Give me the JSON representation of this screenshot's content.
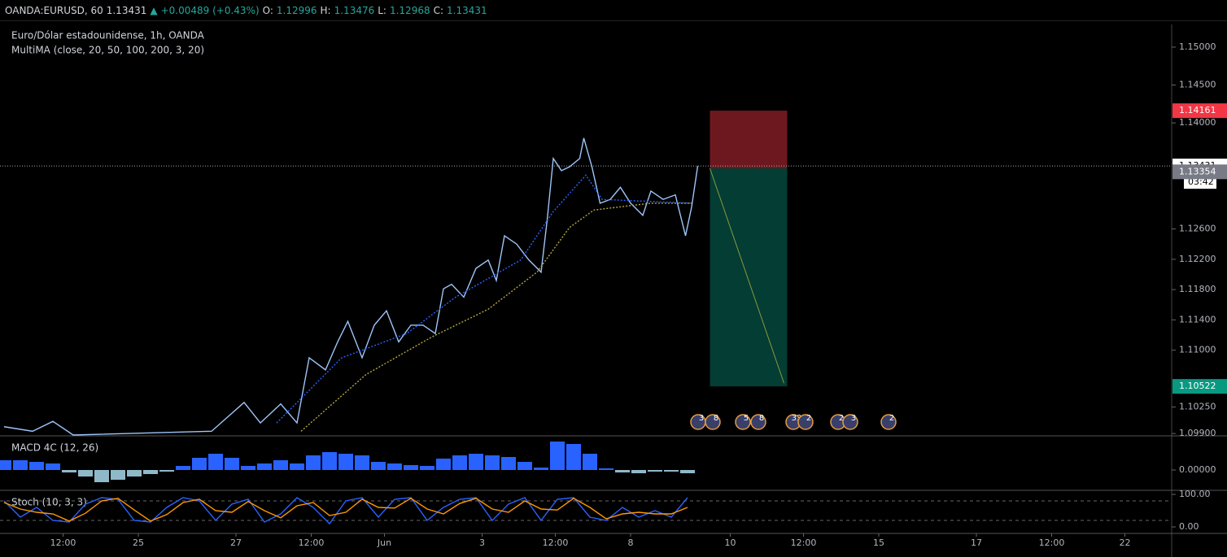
{
  "header": {
    "symbol": "OANDA:EURUSD, 60",
    "last": "1.13431",
    "arrow": "▲",
    "change": "+0.00489 (+0.43%)",
    "o_label": "O:",
    "o": "1.12996",
    "h_label": "H:",
    "h": "1.13476",
    "l_label": "L:",
    "l": "1.12968",
    "c_label": "C:",
    "c": "1.13431"
  },
  "events": [
    "3",
    "8",
    "5",
    "8",
    "33",
    "2",
    "2",
    "3",
    "2"
  ],
  "chart_data": [
    {
      "type": "line",
      "title": "Euro/Dólar estadounidense, 1h, OANDA",
      "subtitle": "MultiMA (close, 20, 50, 100, 200, 3, 20)",
      "xlim": [
        0,
        576
      ],
      "ylim": [
        1.0988,
        1.153
      ],
      "xticks": [
        {
          "value": 31,
          "label": "12:00"
        },
        {
          "value": 68,
          "label": "25"
        },
        {
          "value": 116,
          "label": "27"
        },
        {
          "value": 153,
          "label": "12:00"
        },
        {
          "value": 189,
          "label": "Jun"
        },
        {
          "value": 237,
          "label": "3"
        },
        {
          "value": 273,
          "label": "12:00"
        },
        {
          "value": 310,
          "label": "8"
        },
        {
          "value": 359,
          "label": "10"
        },
        {
          "value": 395,
          "label": "12:00"
        },
        {
          "value": 432,
          "label": "15"
        },
        {
          "value": 480,
          "label": "17"
        },
        {
          "value": 517,
          "label": "12:00"
        },
        {
          "value": 553,
          "label": "22"
        }
      ],
      "yticks": [
        {
          "value": 1.15,
          "label": "1.15000"
        },
        {
          "value": 1.145,
          "label": "1.14500"
        },
        {
          "value": 1.14,
          "label": "1.14000"
        },
        {
          "value": 1.126,
          "label": "1.12600"
        },
        {
          "value": 1.122,
          "label": "1.12200"
        },
        {
          "value": 1.118,
          "label": "1.11800"
        },
        {
          "value": 1.114,
          "label": "1.11400"
        },
        {
          "value": 1.11,
          "label": "1.11000"
        },
        {
          "value": 1.1025,
          "label": "1.10250"
        },
        {
          "value": 1.099,
          "label": "1.09900"
        }
      ],
      "series": [
        {
          "color": "#9ec5f8",
          "x": [
            2,
            16,
            26,
            36,
            104,
            120,
            128,
            138,
            146,
            152,
            160,
            166,
            171,
            178,
            184,
            190,
            196,
            202,
            208,
            214,
            218,
            222,
            228,
            234,
            240,
            244,
            248,
            254,
            260,
            266,
            269,
            272,
            276,
            280,
            285,
            287,
            291,
            295,
            300,
            305,
            310,
            316,
            320,
            326,
            332,
            337,
            340,
            343
          ],
          "values": [
            1.0999,
            1.0993,
            1.1006,
            1.0988,
            1.0993,
            1.1031,
            1.1004,
            1.1029,
            1.1004,
            1.109,
            1.1074,
            1.1111,
            1.1138,
            1.109,
            1.1133,
            1.1152,
            1.1111,
            1.1133,
            1.1133,
            1.1122,
            1.1181,
            1.1187,
            1.117,
            1.1208,
            1.1219,
            1.1192,
            1.1251,
            1.124,
            1.1219,
            1.1203,
            1.1272,
            1.1353,
            1.1337,
            1.1342,
            1.1353,
            1.138,
            1.1342,
            1.1294,
            1.1299,
            1.1315,
            1.1294,
            1.1278,
            1.131,
            1.1299,
            1.1305,
            1.1251,
            1.1289,
            1.13431
          ]
        },
        {
          "color": "#2962ff",
          "x": [
            136,
            168,
            200,
            224,
            256,
            272,
            288,
            296,
            340
          ],
          "values": [
            1.1004,
            1.109,
            1.1122,
            1.117,
            1.1219,
            1.1283,
            1.1331,
            1.1299,
            1.1294
          ]
        },
        {
          "color": "#b5a642",
          "x": [
            148,
            180,
            212,
            240,
            264,
            280,
            292,
            320,
            340
          ],
          "values": [
            1.0993,
            1.1068,
            1.1117,
            1.1154,
            1.1203,
            1.1262,
            1.1285,
            1.1294,
            1.1294
          ]
        }
      ],
      "position": {
        "x": [
          349,
          387
        ],
        "stop": 1.14161,
        "entry": 1.134,
        "target": 1.10522
      },
      "last_price": 1.13431,
      "countdown": "03:42",
      "price_tags": [
        1.14161,
        1.13431,
        1.13354,
        1.10522
      ],
      "tag_colors": [
        "#f23645",
        "#ffffff",
        "#787b86",
        "#089981"
      ]
    },
    {
      "type": "histogram",
      "title": "MACD 4C (12, 26)",
      "xlim": [
        0,
        576
      ],
      "ylim": [
        -0.0025,
        0.0041
      ],
      "yticks": [
        {
          "value": 0,
          "label": "0.00000"
        }
      ],
      "colors": [
        "#2962ff",
        "#8fb9c9"
      ],
      "x": [
        2,
        10,
        18,
        26,
        34,
        42,
        50,
        58,
        66,
        74,
        82,
        90,
        98,
        106,
        114,
        122,
        130,
        138,
        146,
        154,
        162,
        170,
        178,
        186,
        194,
        202,
        210,
        218,
        226,
        234,
        242,
        250,
        258,
        266,
        274,
        282,
        290,
        298,
        306,
        314,
        322,
        330,
        338
      ],
      "values": [
        0.0012,
        0.0012,
        0.001,
        0.0008,
        -0.0003,
        -0.0008,
        -0.0015,
        -0.0012,
        -0.0008,
        -0.0005,
        -0.0002,
        0.0005,
        0.0015,
        0.002,
        0.0015,
        0.0005,
        0.0008,
        0.0012,
        0.0008,
        0.0018,
        0.0022,
        0.002,
        0.0018,
        0.001,
        0.0008,
        0.0006,
        0.0005,
        0.0014,
        0.0018,
        0.002,
        0.0018,
        0.0016,
        0.001,
        0.0003,
        0.0035,
        0.0032,
        0.002,
        0.0002,
        -0.0003,
        -0.0004,
        -0.0002,
        -0.0002,
        -0.0004
      ]
    },
    {
      "type": "line",
      "title": "Stoch (10, 3, 3)",
      "xlim": [
        0,
        576
      ],
      "ylim": [
        -17.5,
        110
      ],
      "yticks": [
        {
          "value": 100,
          "label": "100.00"
        },
        {
          "value": 0,
          "label": "0.00"
        }
      ],
      "bands": [
        80,
        20
      ],
      "series": [
        {
          "color": "#2962ff",
          "x": [
            2,
            10,
            18,
            26,
            34,
            42,
            50,
            58,
            66,
            74,
            82,
            90,
            98,
            106,
            114,
            122,
            130,
            138,
            146,
            154,
            162,
            170,
            178,
            186,
            194,
            202,
            210,
            218,
            226,
            234,
            242,
            250,
            258,
            266,
            274,
            282,
            290,
            298,
            306,
            314,
            322,
            330,
            338
          ],
          "values": [
            80,
            30,
            60,
            20,
            15,
            70,
            90,
            85,
            20,
            15,
            60,
            90,
            80,
            20,
            70,
            85,
            15,
            40,
            90,
            60,
            10,
            80,
            90,
            30,
            85,
            90,
            20,
            60,
            85,
            90,
            20,
            70,
            90,
            20,
            85,
            90,
            30,
            20,
            60,
            30,
            50,
            30,
            90
          ]
        },
        {
          "color": "#ff9800",
          "x": [
            2,
            10,
            18,
            26,
            34,
            42,
            50,
            58,
            66,
            74,
            82,
            90,
            98,
            106,
            114,
            122,
            130,
            138,
            146,
            154,
            162,
            170,
            178,
            186,
            194,
            202,
            210,
            218,
            226,
            234,
            242,
            250,
            258,
            266,
            274,
            282,
            290,
            298,
            306,
            314,
            322,
            330,
            338
          ],
          "values": [
            75,
            55,
            45,
            40,
            18,
            42,
            80,
            88,
            52,
            18,
            38,
            75,
            85,
            50,
            45,
            78,
            50,
            28,
            65,
            75,
            35,
            45,
            85,
            60,
            58,
            88,
            55,
            40,
            72,
            88,
            55,
            45,
            80,
            55,
            52,
            88,
            60,
            25,
            40,
            45,
            40,
            40,
            60
          ]
        }
      ]
    }
  ]
}
